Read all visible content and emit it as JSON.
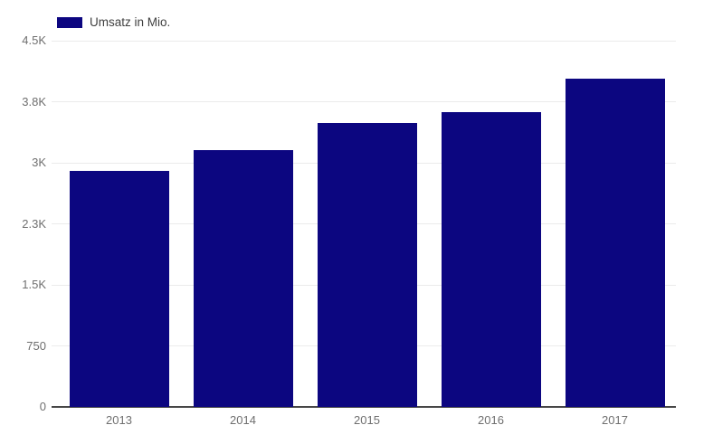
{
  "chart_data": {
    "type": "bar",
    "title": "",
    "legend_label": "Umsatz in Mio.",
    "legend_position": "top-left",
    "categories": [
      "2013",
      "2014",
      "2015",
      "2016",
      "2017"
    ],
    "series": [
      {
        "name": "Umsatz in Mio.",
        "values": [
          2900,
          3160,
          3490,
          3620,
          4030
        ]
      }
    ],
    "values": [
      2900,
      3160,
      3490,
      3620,
      4030
    ],
    "xlabel": "",
    "ylabel": "",
    "ylim": [
      0,
      4500
    ],
    "grid": true,
    "y_axis": {
      "tick_values": [
        4500,
        3750,
        3000,
        2250,
        1500,
        750,
        0
      ],
      "tick_labels": [
        "4.5K",
        "3.8K",
        "3K",
        "2.3K",
        "1.5K",
        "750",
        "0"
      ]
    },
    "colors": {
      "bar": "#0c0680",
      "gridline": "#ebebeb",
      "baseline": "#474747",
      "axis_label_text": "#6f6f6f",
      "legend_text": "#3f3f3f",
      "background": "#ffffff"
    }
  }
}
